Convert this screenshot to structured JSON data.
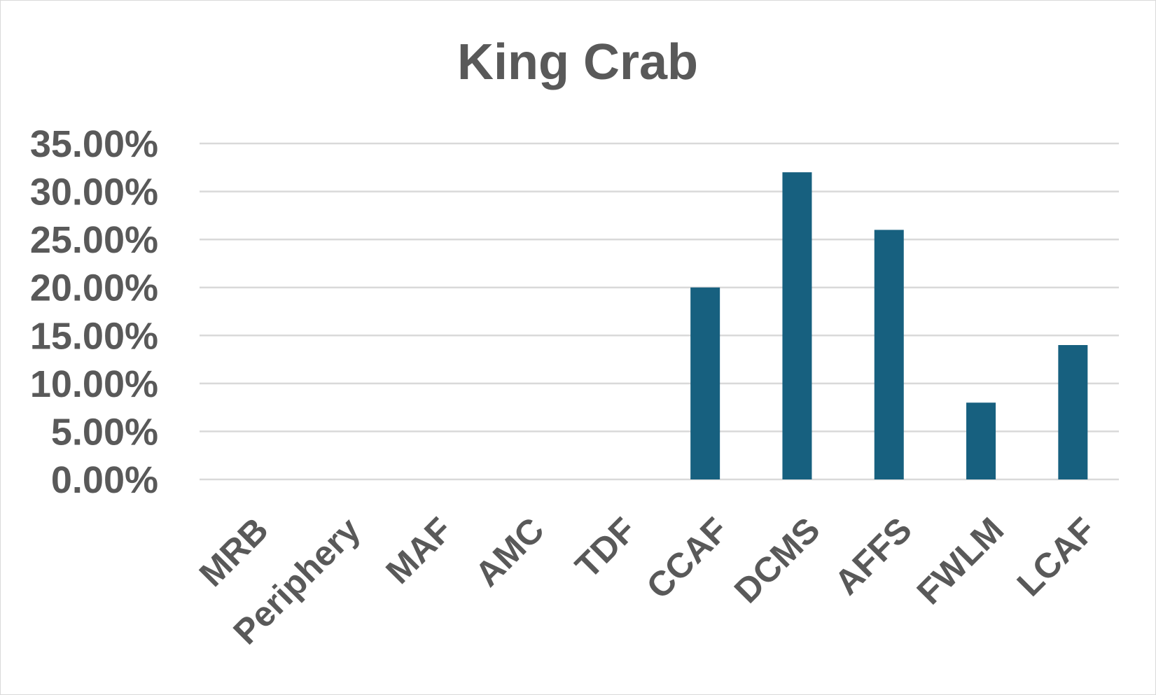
{
  "chart_data": {
    "type": "bar",
    "title": "King Crab",
    "xlabel": "",
    "ylabel": "",
    "categories": [
      "MRB",
      "Periphery",
      "MAF",
      "AMC",
      "TDF",
      "CCAF",
      "DCMS",
      "AFFS",
      "FWLM",
      "LCAF"
    ],
    "series": [
      {
        "values": [
          0,
          0,
          0,
          0,
          0,
          0.2,
          0.32,
          0.26,
          0.08,
          0.14
        ],
        "color": "#17607f"
      }
    ],
    "ylim": [
      0,
      0.35
    ],
    "yticks": [
      0,
      0.05,
      0.1,
      0.15,
      0.2,
      0.25,
      0.3,
      0.35
    ],
    "ytick_labels": [
      "0.00%",
      "5.00%",
      "10.00%",
      "15.00%",
      "20.00%",
      "25.00%",
      "30.00%",
      "35.00%"
    ],
    "grid": true,
    "legend": "none"
  }
}
